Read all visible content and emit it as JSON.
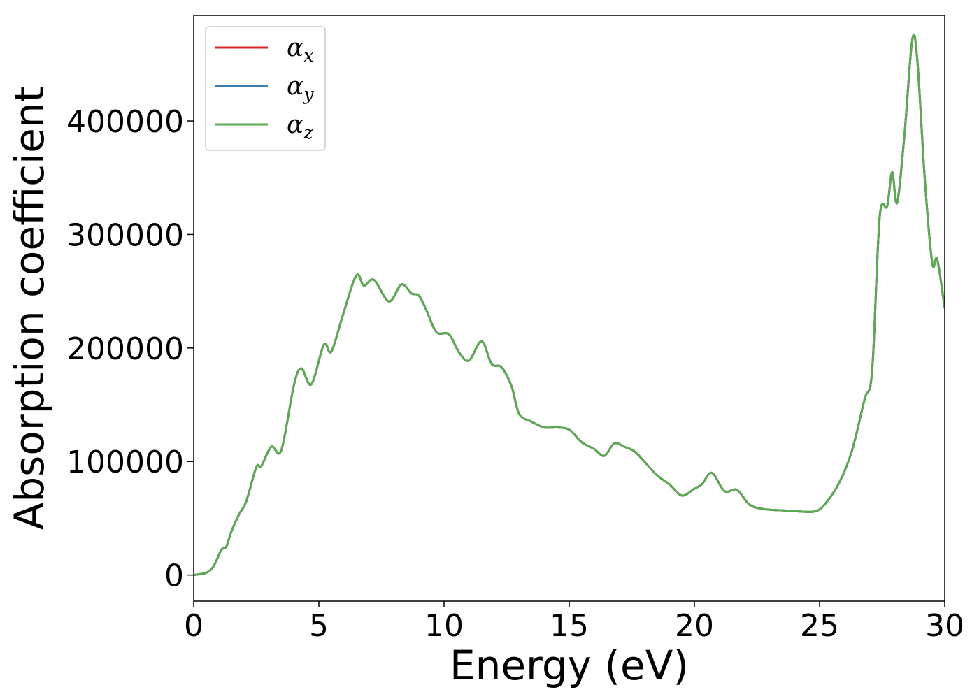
{
  "chart_data": {
    "type": "line",
    "title": "",
    "xlabel": "Energy (eV)",
    "ylabel": "Absorption coefficient",
    "xlim": [
      0,
      30
    ],
    "ylim": [
      -23000,
      493000
    ],
    "xticks": [
      0,
      5,
      10,
      15,
      20,
      25,
      30
    ],
    "xtick_labels": [
      "0",
      "5",
      "10",
      "15",
      "20",
      "25",
      "30"
    ],
    "yticks": [
      0,
      100000,
      200000,
      300000,
      400000
    ],
    "ytick_labels": [
      "0",
      "100000",
      "200000",
      "300000",
      "400000"
    ],
    "grid": false,
    "legend_position": "top-left",
    "colors": {
      "x": "#d62728",
      "y": "#3b7fb5",
      "z": "#5aab4f"
    },
    "legend": [
      {
        "base": "α",
        "sub": "x",
        "color": "#d62728"
      },
      {
        "base": "α",
        "sub": "y",
        "color": "#3b7fb5"
      },
      {
        "base": "α",
        "sub": "z",
        "color": "#5aab4f"
      }
    ],
    "x": [
      0,
      0.5,
      0.8,
      1.1,
      1.3,
      1.5,
      1.8,
      2.1,
      2.5,
      2.7,
      3.1,
      3.5,
      4.0,
      4.3,
      4.7,
      5.2,
      5.5,
      6.0,
      6.5,
      6.8,
      7.2,
      7.8,
      8.3,
      8.7,
      9.0,
      9.3,
      9.7,
      10.2,
      10.6,
      11.0,
      11.5,
      11.9,
      12.3,
      12.7,
      13.0,
      13.5,
      14.0,
      14.5,
      15.0,
      15.5,
      16.0,
      16.4,
      16.8,
      17.2,
      17.6,
      18.0,
      18.5,
      19.0,
      19.5,
      20.0,
      20.3,
      20.7,
      21.2,
      21.7,
      22.2,
      22.8,
      23.5,
      24.2,
      24.8,
      25.2,
      25.8,
      26.3,
      26.8,
      27.1,
      27.4,
      27.7,
      27.9,
      28.1,
      28.4,
      28.7,
      28.9,
      29.2,
      29.5,
      29.7,
      30.0
    ],
    "series": [
      {
        "key": "x",
        "values": [
          0,
          2000,
          8000,
          22000,
          25000,
          38000,
          53000,
          65000,
          95000,
          96000,
          113000,
          110000,
          167000,
          182000,
          168000,
          203000,
          197000,
          232000,
          264000,
          255000,
          260000,
          241000,
          256000,
          248000,
          246000,
          233000,
          214000,
          212000,
          196000,
          189000,
          206000,
          186000,
          183000,
          166000,
          142000,
          135000,
          130000,
          130000,
          128000,
          117000,
          111000,
          105000,
          116000,
          113000,
          109000,
          100000,
          88000,
          80000,
          70000,
          76000,
          80000,
          90000,
          74000,
          75000,
          62000,
          58000,
          57000,
          56000,
          56000,
          62000,
          82000,
          110000,
          155000,
          180000,
          315000,
          325000,
          355000,
          328000,
          390000,
          471000,
          455000,
          350000,
          275000,
          278000,
          235000
        ]
      },
      {
        "key": "y",
        "values": [
          0,
          2000,
          8000,
          22000,
          25000,
          38000,
          53000,
          65000,
          95000,
          96000,
          113000,
          110000,
          167000,
          182000,
          168000,
          203000,
          197000,
          232000,
          264000,
          255000,
          260000,
          241000,
          256000,
          248000,
          246000,
          233000,
          214000,
          212000,
          196000,
          189000,
          206000,
          186000,
          183000,
          166000,
          142000,
          135000,
          130000,
          130000,
          128000,
          117000,
          111000,
          105000,
          116000,
          113000,
          109000,
          100000,
          88000,
          80000,
          70000,
          76000,
          80000,
          90000,
          74000,
          75000,
          62000,
          58000,
          57000,
          56000,
          56000,
          62000,
          82000,
          110000,
          155000,
          180000,
          315000,
          325000,
          355000,
          328000,
          390000,
          471000,
          455000,
          350000,
          275000,
          278000,
          235000
        ]
      },
      {
        "key": "z",
        "values": [
          0,
          2000,
          8000,
          22000,
          25000,
          38000,
          53000,
          65000,
          95000,
          96000,
          113000,
          110000,
          167000,
          182000,
          168000,
          203000,
          197000,
          232000,
          264000,
          255000,
          260000,
          241000,
          256000,
          248000,
          246000,
          233000,
          214000,
          212000,
          196000,
          189000,
          206000,
          186000,
          183000,
          166000,
          142000,
          135000,
          130000,
          130000,
          128000,
          117000,
          111000,
          105000,
          116000,
          113000,
          109000,
          100000,
          88000,
          80000,
          70000,
          76000,
          80000,
          90000,
          74000,
          75000,
          62000,
          58000,
          57000,
          56000,
          56000,
          62000,
          82000,
          110000,
          155000,
          180000,
          315000,
          325000,
          355000,
          328000,
          390000,
          471000,
          455000,
          350000,
          275000,
          278000,
          235000
        ]
      }
    ]
  }
}
